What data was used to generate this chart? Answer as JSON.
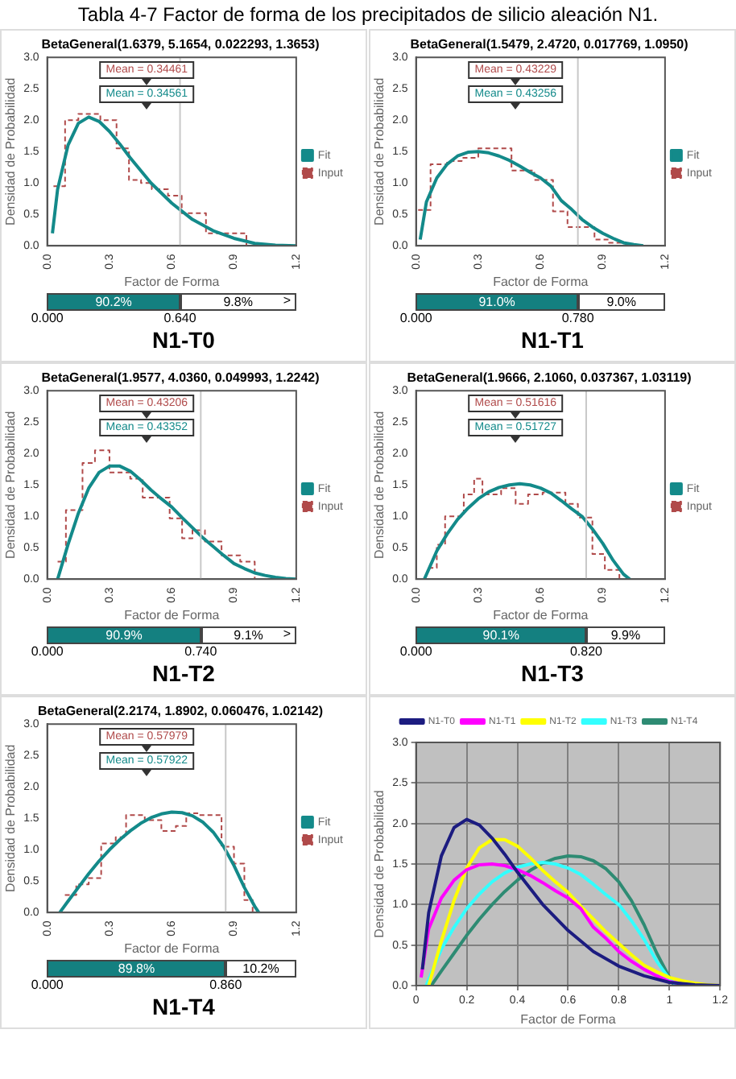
{
  "chart_data": [
    {
      "type": "other",
      "title": "Tabla 4-7 Factor de forma de los precipitados de silicio aleación N1."
    },
    {
      "type": "line",
      "title": "BetaGeneral(1.6379, 5.1654, 0.022293, 1.3653)",
      "subtitle": "N1-T0",
      "xlabel": "Factor de Forma",
      "ylabel": "Densidad de Probabilidad",
      "legend": "right",
      "marker": "none",
      "xlim": [
        0,
        1.2
      ],
      "xticks": [
        {
          "value": 0,
          "label": "0.0"
        },
        {
          "value": 0.3,
          "label": "0.3"
        },
        {
          "value": 0.6,
          "label": "0.6"
        },
        {
          "value": 0.9,
          "label": "0.9"
        },
        {
          "value": 1.2,
          "label": "1.2"
        }
      ],
      "ylim": [
        0,
        3
      ],
      "yticks": [
        {
          "value": 0,
          "label": "0.0"
        },
        {
          "value": 0.5,
          "label": "0.5"
        },
        {
          "value": 1,
          "label": "1.0"
        },
        {
          "value": 1.5,
          "label": "1.5"
        },
        {
          "value": 2,
          "label": "2.0"
        },
        {
          "value": 2.5,
          "label": "2.5"
        },
        {
          "value": 3,
          "label": "3.0"
        }
      ],
      "ref_lines": [
        {
          "axis": "x",
          "value": 0.64,
          "color": "#c8c8c8"
        }
      ],
      "annotations": [
        "Mean = 0.34461",
        "Mean = 0.34561",
        "90.2%",
        "9.8%",
        "0.000",
        "0.640",
        ">"
      ],
      "series": [
        {
          "name": "Fit",
          "type": "line",
          "color": "#138a8a",
          "x": [
            0.025,
            0.05,
            0.1,
            0.15,
            0.2,
            0.25,
            0.3,
            0.35,
            0.4,
            0.5,
            0.6,
            0.7,
            0.8,
            0.9,
            1.0,
            1.1,
            1.2
          ],
          "values": [
            0.2,
            0.9,
            1.6,
            1.95,
            2.05,
            1.98,
            1.82,
            1.62,
            1.4,
            1.0,
            0.68,
            0.42,
            0.24,
            0.12,
            0.04,
            0.01,
            0
          ]
        },
        {
          "name": "Input",
          "type": "step",
          "color": "#b04a4a",
          "line_style": "dashed",
          "x": [
            0.03,
            0.086,
            0.15,
            0.256,
            0.334,
            0.394,
            0.452,
            0.504,
            0.582,
            0.648,
            0.765,
            0.843,
            0.96
          ],
          "values": [
            0.95,
            2.0,
            2.1,
            2.0,
            1.55,
            1.05,
            1.0,
            0.9,
            0.8,
            0.52,
            0.2,
            0.2,
            0
          ]
        }
      ]
    },
    {
      "type": "line",
      "title": "BetaGeneral(1.5479, 2.4720, 0.017769, 1.0950)",
      "subtitle": "N1-T1",
      "xlabel": "Factor de Forma",
      "ylabel": "Densidad de Probabilidad",
      "legend": "right",
      "marker": "none",
      "xlim": [
        0,
        1.2
      ],
      "xticks": [
        {
          "value": 0,
          "label": "0.0"
        },
        {
          "value": 0.3,
          "label": "0.3"
        },
        {
          "value": 0.6,
          "label": "0.6"
        },
        {
          "value": 0.9,
          "label": "0.9"
        },
        {
          "value": 1.2,
          "label": "1.2"
        }
      ],
      "ylim": [
        0,
        3
      ],
      "yticks": [
        {
          "value": 0,
          "label": "0.0"
        },
        {
          "value": 0.5,
          "label": "0.5"
        },
        {
          "value": 1,
          "label": "1.0"
        },
        {
          "value": 1.5,
          "label": "1.5"
        },
        {
          "value": 2,
          "label": "2.0"
        },
        {
          "value": 2.5,
          "label": "2.5"
        },
        {
          "value": 3,
          "label": "3.0"
        }
      ],
      "ref_lines": [
        {
          "axis": "x",
          "value": 0.78,
          "color": "#c8c8c8"
        }
      ],
      "annotations": [
        "Mean = 0.43229",
        "Mean = 0.43256",
        "91.0%",
        "9.0%",
        "0.000",
        "0.780"
      ],
      "series": [
        {
          "name": "Fit",
          "type": "line",
          "color": "#138a8a",
          "x": [
            0.02,
            0.05,
            0.1,
            0.15,
            0.2,
            0.25,
            0.3,
            0.35,
            0.4,
            0.45,
            0.5,
            0.55,
            0.6,
            0.65,
            0.7,
            0.75,
            0.8,
            0.85,
            0.9,
            0.95,
            1.0,
            1.05,
            1.095
          ],
          "values": [
            0.1,
            0.7,
            1.08,
            1.3,
            1.43,
            1.49,
            1.5,
            1.48,
            1.43,
            1.36,
            1.27,
            1.17,
            1.08,
            0.95,
            0.72,
            0.58,
            0.42,
            0.3,
            0.2,
            0.12,
            0.05,
            0.02,
            0
          ]
        },
        {
          "name": "Input",
          "type": "step",
          "color": "#b04a4a",
          "line_style": "dashed",
          "x": [
            0.01,
            0.07,
            0.15,
            0.22,
            0.3,
            0.46,
            0.57,
            0.66,
            0.73,
            0.86,
            0.93,
            0.99
          ],
          "values": [
            0.57,
            1.3,
            1.35,
            1.4,
            1.55,
            1.2,
            1.05,
            0.55,
            0.3,
            0.1,
            0.05,
            0
          ]
        }
      ]
    },
    {
      "type": "line",
      "title": "BetaGeneral(1.9577, 4.0360, 0.049993, 1.2242)",
      "subtitle": "N1-T2",
      "xlabel": "Factor de Forma",
      "ylabel": "Densidad de Probabilidad",
      "legend": "right",
      "marker": "none",
      "xlim": [
        0,
        1.2
      ],
      "xticks": [
        {
          "value": 0,
          "label": "0.0"
        },
        {
          "value": 0.3,
          "label": "0.3"
        },
        {
          "value": 0.6,
          "label": "0.6"
        },
        {
          "value": 0.9,
          "label": "0.9"
        },
        {
          "value": 1.2,
          "label": "1.2"
        }
      ],
      "ylim": [
        0,
        3
      ],
      "yticks": [
        {
          "value": 0,
          "label": "0.0"
        },
        {
          "value": 0.5,
          "label": "0.5"
        },
        {
          "value": 1,
          "label": "1.0"
        },
        {
          "value": 1.5,
          "label": "1.5"
        },
        {
          "value": 2,
          "label": "2.0"
        },
        {
          "value": 2.5,
          "label": "2.5"
        },
        {
          "value": 3,
          "label": "3.0"
        }
      ],
      "ref_lines": [
        {
          "axis": "x",
          "value": 0.74,
          "color": "#c8c8c8"
        }
      ],
      "annotations": [
        "Mean = 0.43206",
        "Mean = 0.43352",
        "90.9%",
        "9.1%",
        "0.000",
        "0.740",
        ">"
      ],
      "series": [
        {
          "name": "Fit",
          "type": "line",
          "color": "#138a8a",
          "x": [
            0.05,
            0.1,
            0.15,
            0.2,
            0.25,
            0.3,
            0.35,
            0.4,
            0.45,
            0.5,
            0.55,
            0.6,
            0.65,
            0.7,
            0.75,
            0.8,
            0.85,
            0.9,
            0.95,
            1.0,
            1.05,
            1.1,
            1.15,
            1.2
          ],
          "values": [
            0,
            0.55,
            1.05,
            1.45,
            1.7,
            1.8,
            1.8,
            1.72,
            1.58,
            1.42,
            1.28,
            1.15,
            0.98,
            0.82,
            0.66,
            0.52,
            0.38,
            0.25,
            0.17,
            0.1,
            0.06,
            0.03,
            0.01,
            0
          ]
        },
        {
          "name": "Input",
          "type": "step",
          "color": "#b04a4a",
          "line_style": "dashed",
          "x": [
            0.05,
            0.09,
            0.17,
            0.23,
            0.3,
            0.4,
            0.46,
            0.59,
            0.65,
            0.7,
            0.76,
            0.84,
            0.93,
            1.0
          ],
          "values": [
            0.28,
            1.1,
            1.85,
            2.05,
            1.7,
            1.6,
            1.3,
            0.97,
            0.65,
            0.78,
            0.6,
            0.38,
            0.28,
            0
          ]
        }
      ]
    },
    {
      "type": "line",
      "title": "BetaGeneral(1.9666, 2.1060, 0.037367, 1.03119)",
      "subtitle": "N1-T3",
      "xlabel": "Factor de Forma",
      "ylabel": "Densidad de Probabilidad",
      "legend": "right",
      "marker": "none",
      "xlim": [
        0,
        1.2
      ],
      "xticks": [
        {
          "value": 0,
          "label": "0.0"
        },
        {
          "value": 0.3,
          "label": "0.3"
        },
        {
          "value": 0.6,
          "label": "0.6"
        },
        {
          "value": 0.9,
          "label": "0.9"
        },
        {
          "value": 1.2,
          "label": "1.2"
        }
      ],
      "ylim": [
        0,
        3
      ],
      "yticks": [
        {
          "value": 0,
          "label": "0.0"
        },
        {
          "value": 0.5,
          "label": "0.5"
        },
        {
          "value": 1,
          "label": "1.0"
        },
        {
          "value": 1.5,
          "label": "1.5"
        },
        {
          "value": 2,
          "label": "2.0"
        },
        {
          "value": 2.5,
          "label": "2.5"
        },
        {
          "value": 3,
          "label": "3.0"
        }
      ],
      "ref_lines": [
        {
          "axis": "x",
          "value": 0.82,
          "color": "#c8c8c8"
        }
      ],
      "annotations": [
        "Mean = 0.51616",
        "Mean = 0.51727",
        "90.1%",
        "9.9%",
        "0.000",
        "0.820"
      ],
      "series": [
        {
          "name": "Fit",
          "type": "line",
          "color": "#138a8a",
          "x": [
            0.04,
            0.1,
            0.15,
            0.2,
            0.25,
            0.3,
            0.35,
            0.4,
            0.45,
            0.5,
            0.55,
            0.6,
            0.65,
            0.7,
            0.75,
            0.8,
            0.85,
            0.9,
            0.95,
            1.0,
            1.03
          ],
          "values": [
            0,
            0.45,
            0.72,
            0.95,
            1.13,
            1.28,
            1.39,
            1.46,
            1.5,
            1.52,
            1.5,
            1.45,
            1.37,
            1.25,
            1.12,
            1.0,
            0.8,
            0.57,
            0.3,
            0.08,
            0
          ]
        },
        {
          "name": "Input",
          "type": "step",
          "color": "#b04a4a",
          "line_style": "dashed",
          "x": [
            0.06,
            0.1,
            0.14,
            0.23,
            0.28,
            0.32,
            0.41,
            0.48,
            0.54,
            0.61,
            0.72,
            0.78,
            0.85,
            0.91,
            0.98
          ],
          "values": [
            0.18,
            0.55,
            1.0,
            1.35,
            1.6,
            1.35,
            1.45,
            1.2,
            1.35,
            1.38,
            1.2,
            0.98,
            0.4,
            0.15,
            0
          ]
        }
      ]
    },
    {
      "type": "line",
      "title": "BetaGeneral(2.2174, 1.8902, 0.060476, 1.02142)",
      "subtitle": "N1-T4",
      "xlabel": "Factor de Forma",
      "ylabel": "Densidad de Probabilidad",
      "legend": "right",
      "marker": "none",
      "xlim": [
        0,
        1.2
      ],
      "xticks": [
        {
          "value": 0,
          "label": "0.0"
        },
        {
          "value": 0.3,
          "label": "0.3"
        },
        {
          "value": 0.6,
          "label": "0.6"
        },
        {
          "value": 0.9,
          "label": "0.9"
        },
        {
          "value": 1.2,
          "label": "1.2"
        }
      ],
      "ylim": [
        0,
        3
      ],
      "yticks": [
        {
          "value": 0,
          "label": "0.0"
        },
        {
          "value": 0.5,
          "label": "0.5"
        },
        {
          "value": 1,
          "label": "1.0"
        },
        {
          "value": 1.5,
          "label": "1.5"
        },
        {
          "value": 2,
          "label": "2.0"
        },
        {
          "value": 2.5,
          "label": "2.5"
        },
        {
          "value": 3,
          "label": "3.0"
        }
      ],
      "ref_lines": [
        {
          "axis": "x",
          "value": 0.86,
          "color": "#c8c8c8"
        }
      ],
      "annotations": [
        "Mean = 0.57979",
        "Mean = 0.57922",
        "89.8%",
        "10.2%",
        "0.000",
        "0.860"
      ],
      "series": [
        {
          "name": "Fit",
          "type": "line",
          "color": "#138a8a",
          "x": [
            0.06,
            0.1,
            0.15,
            0.2,
            0.25,
            0.3,
            0.35,
            0.4,
            0.45,
            0.5,
            0.55,
            0.6,
            0.65,
            0.7,
            0.75,
            0.8,
            0.85,
            0.9,
            0.95,
            1.0,
            1.02
          ],
          "values": [
            0,
            0.18,
            0.4,
            0.62,
            0.82,
            1.0,
            1.16,
            1.3,
            1.42,
            1.51,
            1.57,
            1.6,
            1.59,
            1.54,
            1.44,
            1.28,
            1.05,
            0.75,
            0.4,
            0.1,
            0
          ]
        },
        {
          "name": "Input",
          "type": "step",
          "color": "#b04a4a",
          "line_style": "dashed",
          "x": [
            0.085,
            0.14,
            0.2,
            0.26,
            0.33,
            0.38,
            0.47,
            0.55,
            0.62,
            0.67,
            0.73,
            0.84,
            0.9,
            0.95,
            0.99
          ],
          "values": [
            0.28,
            0.45,
            0.55,
            1.1,
            1.2,
            1.55,
            1.47,
            1.3,
            1.38,
            1.58,
            1.55,
            1.05,
            0.78,
            0.2,
            0
          ]
        }
      ]
    },
    {
      "type": "line",
      "xlabel": "Factor de Forma",
      "ylabel": "Densidad de Probabilidad",
      "legend": "top",
      "grid": true,
      "marker": "none",
      "xlim": [
        0,
        1.2
      ],
      "xticks": [
        0,
        0.2,
        0.4,
        0.6,
        0.8,
        1,
        1.2
      ],
      "ylim": [
        0,
        3
      ],
      "yticks": [
        {
          "value": 0,
          "label": "0.0"
        },
        {
          "value": 0.5,
          "label": "0.5"
        },
        {
          "value": 1,
          "label": "1.0"
        },
        {
          "value": 1.5,
          "label": "1.5"
        },
        {
          "value": 2,
          "label": "2.0"
        },
        {
          "value": 2.5,
          "label": "2.5"
        },
        {
          "value": 3,
          "label": "3.0"
        }
      ],
      "series": [
        {
          "name": "N1-T0",
          "color": "#1c1c80",
          "x": [
            0.025,
            0.05,
            0.1,
            0.15,
            0.2,
            0.25,
            0.3,
            0.35,
            0.4,
            0.5,
            0.6,
            0.7,
            0.8,
            0.9,
            1.0,
            1.1,
            1.2
          ],
          "values": [
            0.2,
            0.9,
            1.6,
            1.95,
            2.05,
            1.98,
            1.82,
            1.62,
            1.4,
            1.0,
            0.68,
            0.42,
            0.24,
            0.12,
            0.04,
            0.01,
            0
          ]
        },
        {
          "name": "N1-T1",
          "color": "#ff00ff",
          "x": [
            0.02,
            0.05,
            0.1,
            0.15,
            0.2,
            0.25,
            0.3,
            0.35,
            0.4,
            0.45,
            0.5,
            0.55,
            0.6,
            0.65,
            0.7,
            0.75,
            0.8,
            0.85,
            0.9,
            0.95,
            1.0,
            1.05,
            1.095
          ],
          "values": [
            0.1,
            0.7,
            1.08,
            1.3,
            1.43,
            1.49,
            1.5,
            1.48,
            1.43,
            1.36,
            1.27,
            1.17,
            1.08,
            0.95,
            0.72,
            0.58,
            0.42,
            0.3,
            0.2,
            0.12,
            0.05,
            0.02,
            0
          ]
        },
        {
          "name": "N1-T2",
          "color": "#ffff00",
          "x": [
            0.05,
            0.1,
            0.15,
            0.2,
            0.25,
            0.3,
            0.35,
            0.4,
            0.45,
            0.5,
            0.55,
            0.6,
            0.65,
            0.7,
            0.75,
            0.8,
            0.85,
            0.9,
            0.95,
            1.0,
            1.05,
            1.1,
            1.15,
            1.2
          ],
          "values": [
            0,
            0.55,
            1.05,
            1.45,
            1.7,
            1.8,
            1.8,
            1.72,
            1.58,
            1.42,
            1.28,
            1.15,
            0.98,
            0.82,
            0.66,
            0.52,
            0.38,
            0.25,
            0.17,
            0.1,
            0.06,
            0.03,
            0.01,
            0
          ]
        },
        {
          "name": "N1-T3",
          "color": "#33ffff",
          "x": [
            0.04,
            0.1,
            0.15,
            0.2,
            0.25,
            0.3,
            0.35,
            0.4,
            0.45,
            0.5,
            0.55,
            0.6,
            0.65,
            0.7,
            0.75,
            0.8,
            0.85,
            0.9,
            0.95,
            1.0,
            1.03
          ],
          "values": [
            0,
            0.45,
            0.72,
            0.95,
            1.13,
            1.28,
            1.39,
            1.46,
            1.5,
            1.52,
            1.5,
            1.45,
            1.37,
            1.25,
            1.12,
            1.0,
            0.8,
            0.57,
            0.3,
            0.08,
            0
          ]
        },
        {
          "name": "N1-T4",
          "color": "#2e8b73",
          "x": [
            0.06,
            0.1,
            0.15,
            0.2,
            0.25,
            0.3,
            0.35,
            0.4,
            0.45,
            0.5,
            0.55,
            0.6,
            0.65,
            0.7,
            0.75,
            0.8,
            0.85,
            0.9,
            0.95,
            1.0,
            1.02
          ],
          "values": [
            0,
            0.18,
            0.4,
            0.62,
            0.82,
            1.0,
            1.16,
            1.3,
            1.42,
            1.51,
            1.57,
            1.6,
            1.59,
            1.54,
            1.44,
            1.28,
            1.05,
            0.75,
            0.4,
            0.1,
            0
          ]
        }
      ]
    }
  ]
}
